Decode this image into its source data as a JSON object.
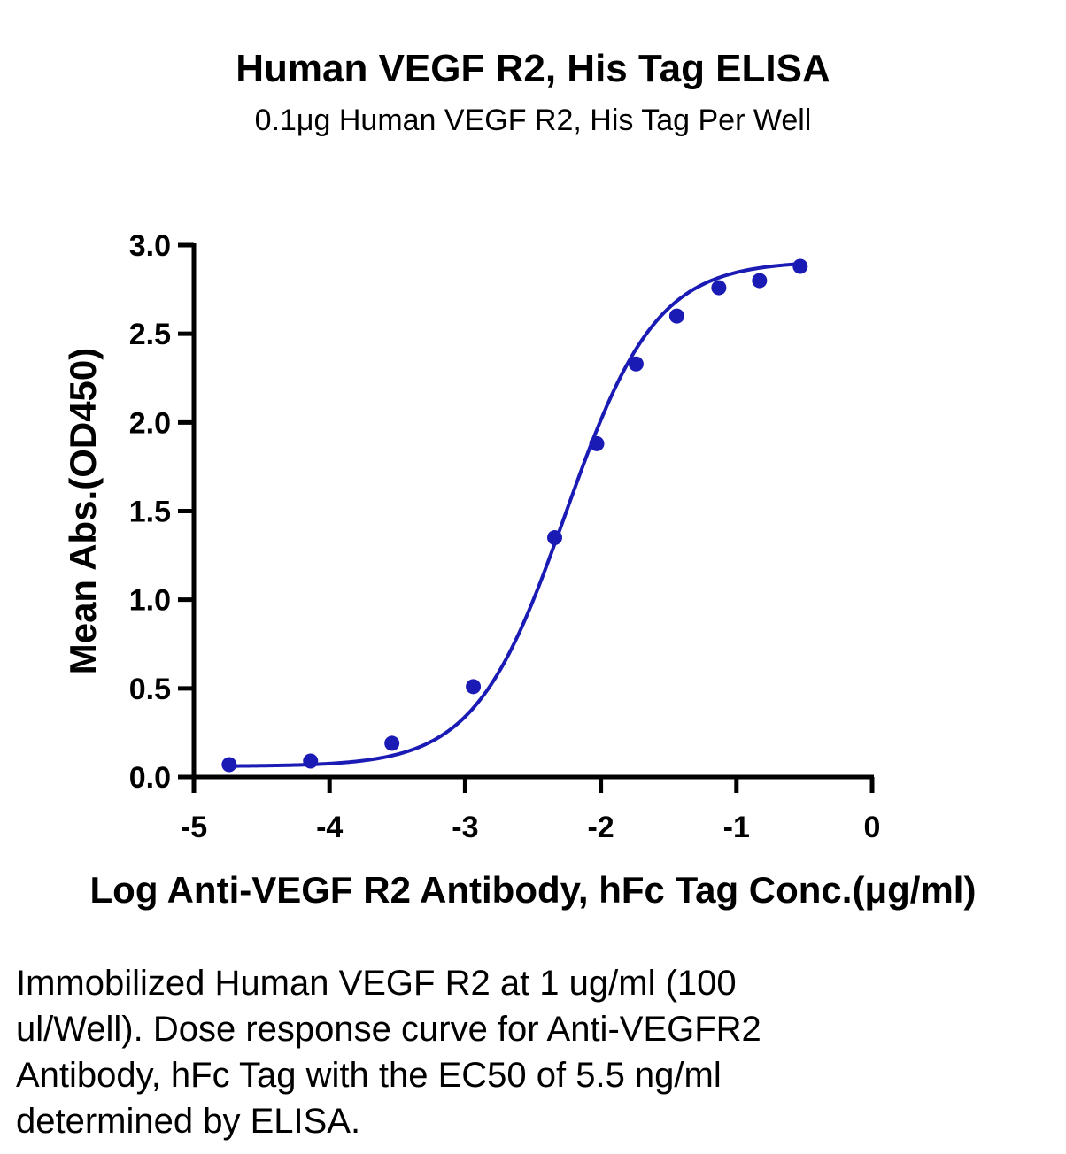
{
  "chart_data": {
    "type": "scatter",
    "title": "Human VEGF R2, His Tag ELISA",
    "subtitle": "0.1μg Human VEGF R2, His Tag Per Well",
    "xlabel": "Log Anti-VEGF R2 Antibody, hFc Tag Conc.(μg/ml)",
    "ylabel": "Mean Abs.(OD450)",
    "xlim": [
      -5,
      0
    ],
    "ylim": [
      0,
      3.0
    ],
    "x_ticks": [
      -5,
      -4,
      -3,
      -2,
      -1,
      0
    ],
    "x_tick_labels": [
      "-5",
      "-4",
      "-3",
      "-2",
      "-1",
      "0"
    ],
    "y_ticks": [
      0,
      0.5,
      1.0,
      1.5,
      2.0,
      2.5,
      3.0
    ],
    "y_tick_labels": [
      "0.0",
      "0.5",
      "1.0",
      "1.5",
      "2.0",
      "2.5",
      "3.0"
    ],
    "grid": false,
    "series": [
      {
        "color": "#1a1ab4",
        "x": [
          -4.74,
          -4.14,
          -3.54,
          -2.94,
          -2.34,
          -2.03,
          -1.74,
          -1.44,
          -1.13,
          -0.83,
          -0.53
        ],
        "y": [
          0.07,
          0.09,
          0.19,
          0.51,
          1.35,
          1.88,
          2.33,
          2.6,
          2.76,
          2.8,
          2.88
        ],
        "fit": "4PL",
        "fit_params": {
          "bottom": 0.06,
          "top": 2.91,
          "log_ec50": -2.26,
          "hill": 1.3
        }
      }
    ]
  },
  "caption": "Immobilized Human VEGF R2 at 1 ug/ml (100 ul/Well). Dose response curve for Anti-VEGFR2 Antibody, hFc Tag with the EC50 of 5.5 ng/ml determined by ELISA."
}
